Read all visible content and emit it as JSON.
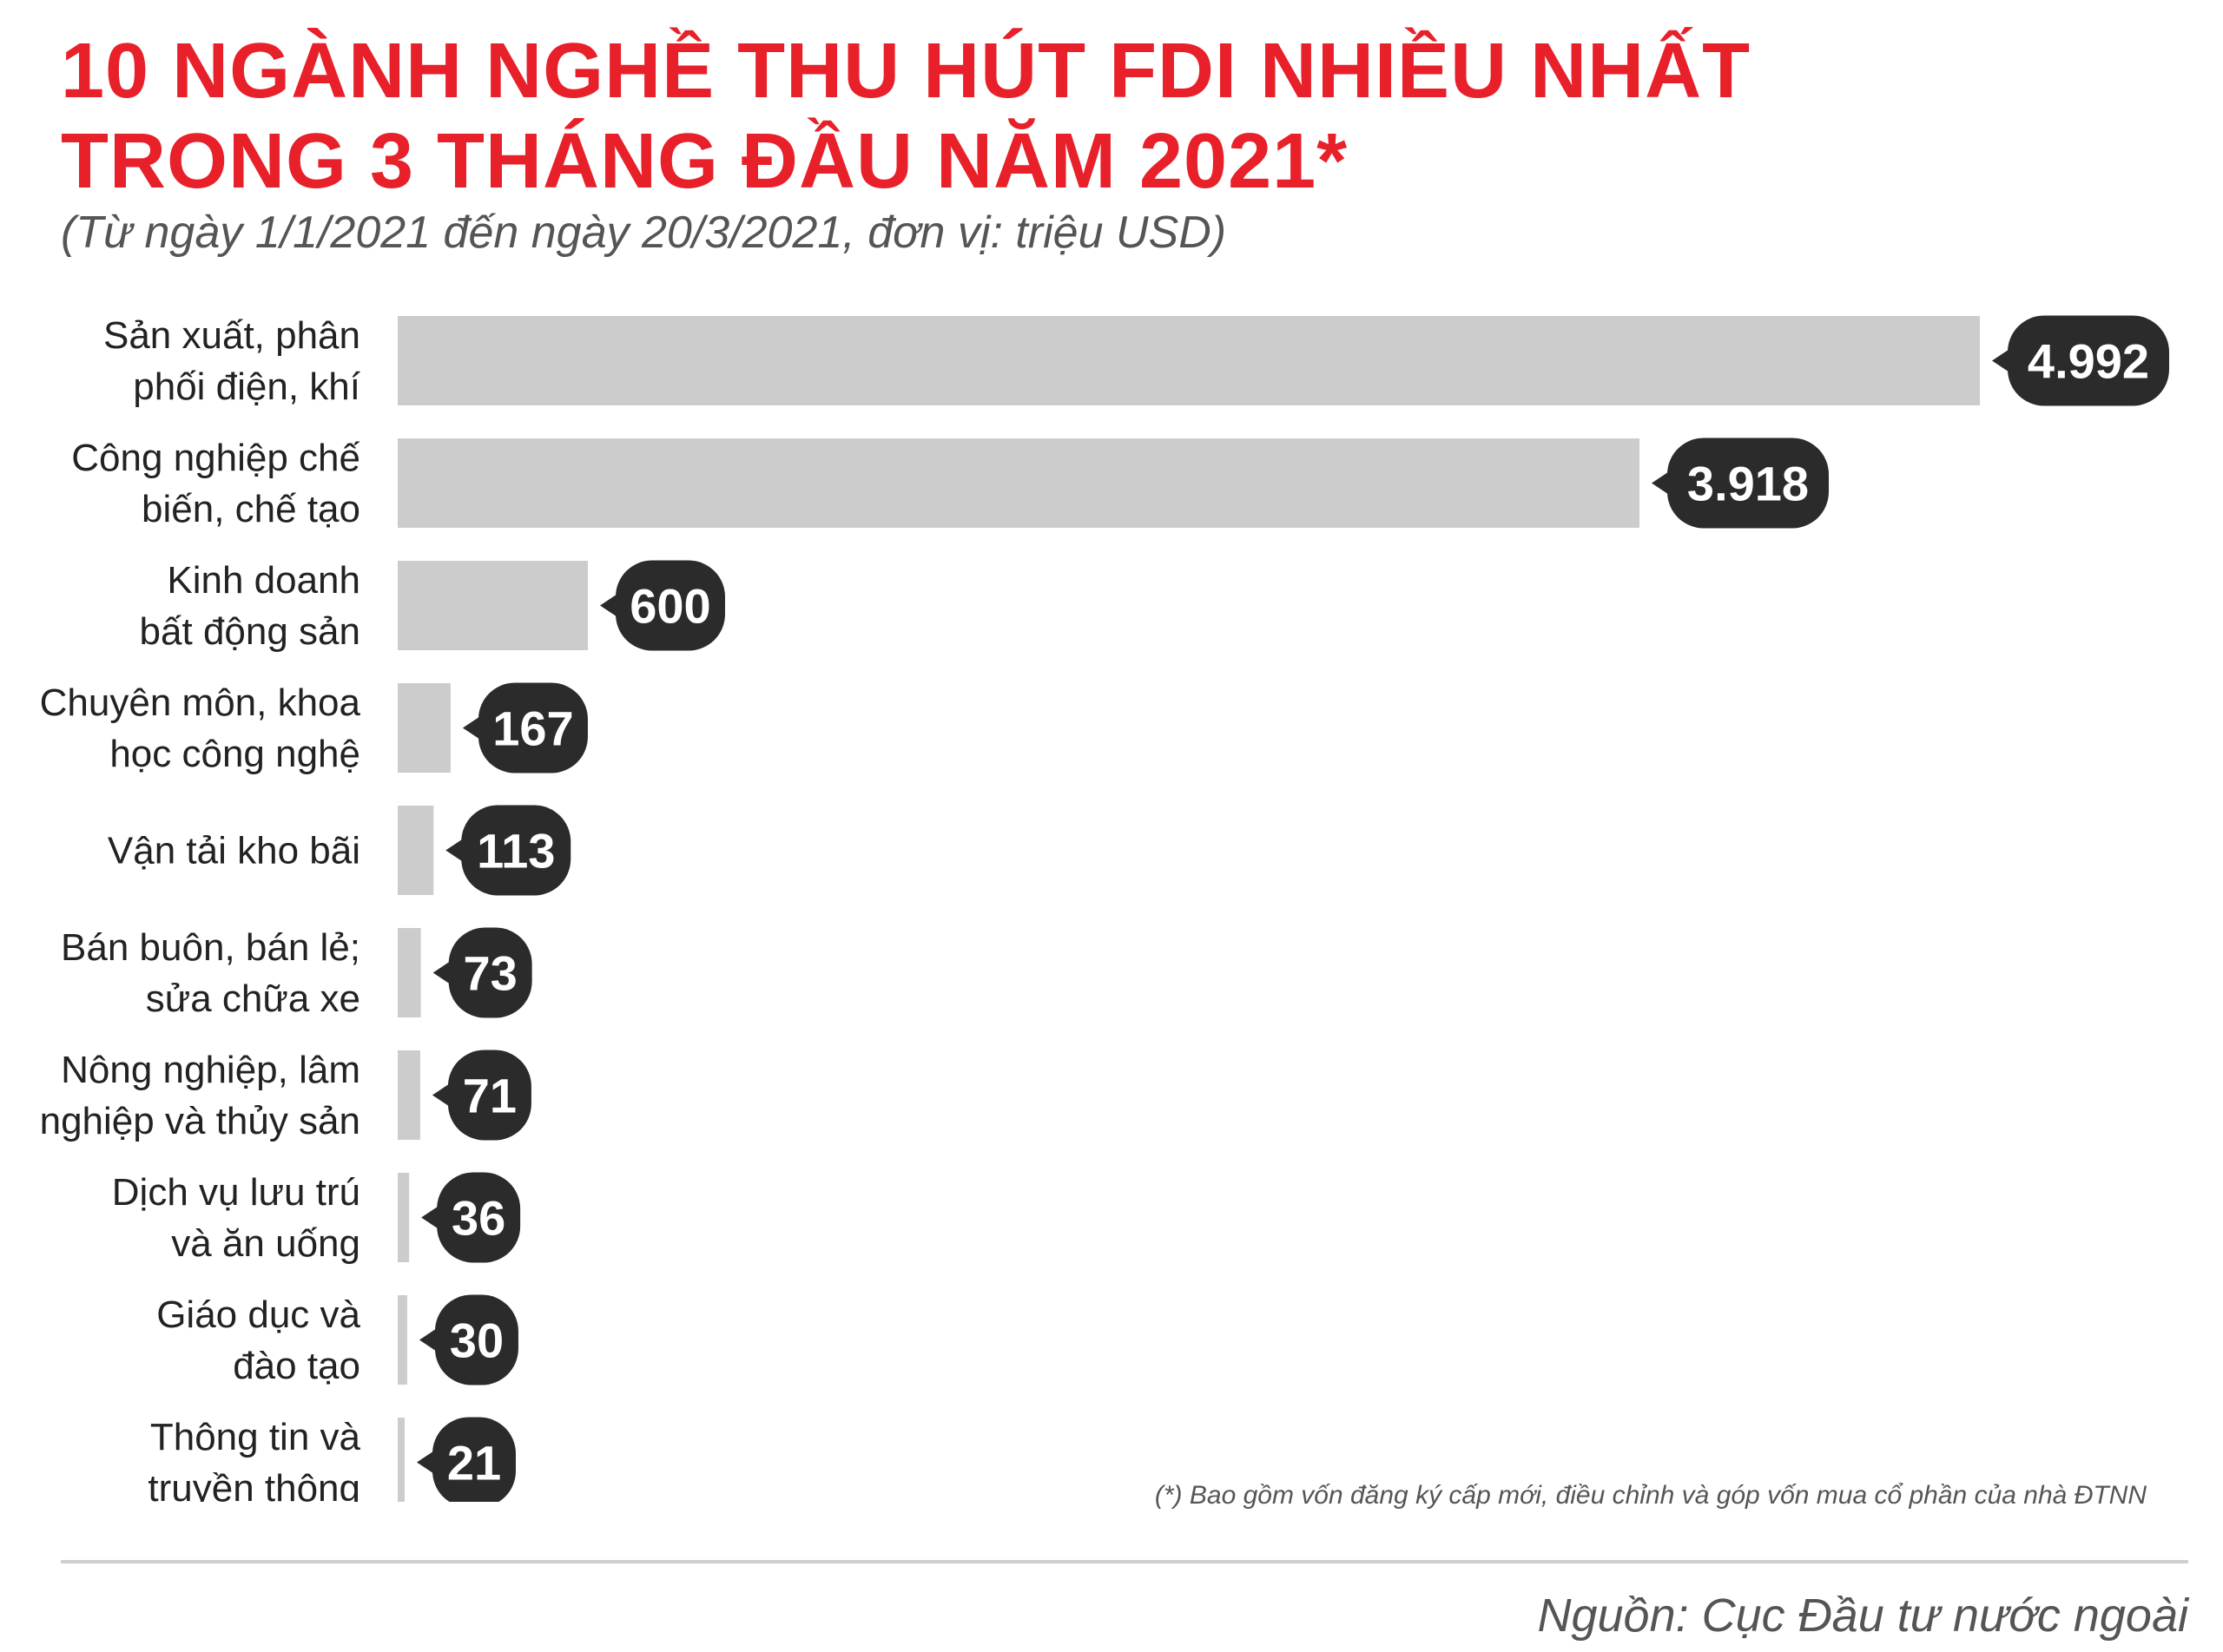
{
  "title_line1": "10 NGÀNH NGHỀ THU HÚT FDI NHIỀU NHẤT",
  "title_line2": "TRONG 3 THÁNG ĐẦU NĂM 2021*",
  "subtitle": "(Từ ngày 1/1/2021 đến ngày 20/3/2021, đơn vị: triệu USD)",
  "note": "(*) Bao gồm vốn đăng ký cấp mới, điều chỉnh và góp vốn mua cổ phần của nhà ĐTNN",
  "source": "Nguồn: Cục Đầu tư nước ngoài",
  "colors": {
    "title": "#e8202a",
    "bar": "#cccccc",
    "badge": "#2b2b2b"
  },
  "chart_data": {
    "type": "bar",
    "orientation": "horizontal",
    "categories": [
      [
        "Sản xuất, phân",
        "phối điện, khí"
      ],
      [
        "Công nghiệp chế",
        "biến, chế tạo"
      ],
      [
        "Kinh doanh",
        "bất động sản"
      ],
      [
        "Chuyên môn, khoa",
        "học công nghệ"
      ],
      [
        "Vận tải kho bãi"
      ],
      [
        "Bán buôn, bán lẻ;",
        "sửa chữa xe"
      ],
      [
        "Nông nghiệp, lâm",
        "nghiệp và thủy sản"
      ],
      [
        "Dịch vụ lưu trú",
        "và ăn uống"
      ],
      [
        "Giáo dục và",
        "đào tạo"
      ],
      [
        "Thông tin và",
        "truyền thông"
      ]
    ],
    "values": [
      4992,
      3918,
      600,
      167,
      113,
      73,
      71,
      36,
      30,
      21
    ],
    "value_labels": [
      "4.992",
      "3.918",
      "600",
      "167",
      "113",
      "73",
      "71",
      "36",
      "30",
      "21"
    ],
    "xlim": [
      0,
      4992
    ],
    "grid": false,
    "legend": "none"
  }
}
